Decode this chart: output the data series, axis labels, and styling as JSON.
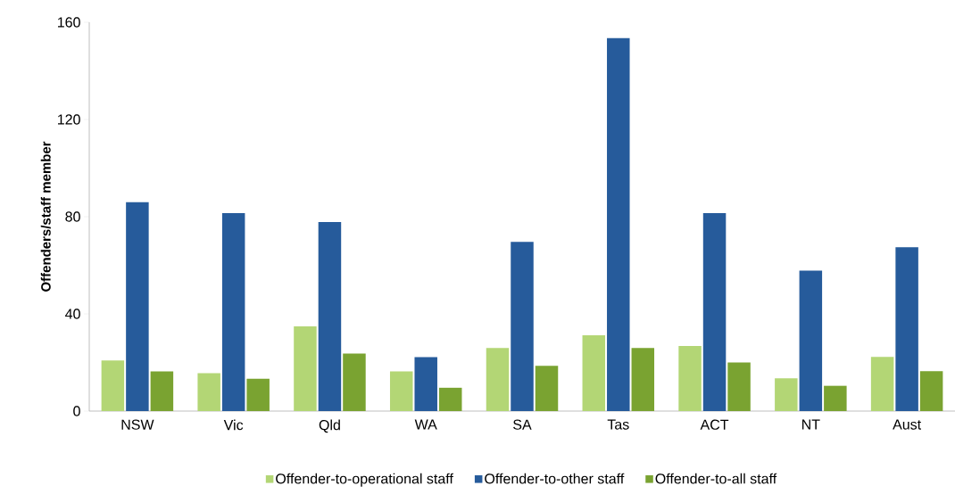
{
  "chart_data": {
    "type": "bar",
    "ylabel": "Offenders/staff member",
    "categories": [
      "NSW",
      "Vic",
      "Qld",
      "WA",
      "SA",
      "Tas",
      "ACT",
      "NT",
      "Aust"
    ],
    "series": [
      {
        "name": "Offender-to-operational staff",
        "color": "#b3d675",
        "values": [
          20.8,
          15.6,
          34.9,
          16.3,
          26.0,
          31.2,
          26.8,
          13.5,
          22.3
        ]
      },
      {
        "name": "Offender-to-other staff",
        "color": "#265b9b",
        "values": [
          86.0,
          81.5,
          77.8,
          22.2,
          69.6,
          153.5,
          81.5,
          57.8,
          67.4
        ]
      },
      {
        "name": "Offender-to-all staff",
        "color": "#7aa331",
        "values": [
          16.3,
          13.3,
          23.7,
          9.6,
          18.6,
          26.0,
          20.0,
          10.4,
          16.4
        ]
      }
    ],
    "ylim": [
      0,
      160
    ],
    "yticks": [
      0,
      40,
      80,
      120,
      160
    ],
    "grid": false,
    "legend": "bottom"
  }
}
